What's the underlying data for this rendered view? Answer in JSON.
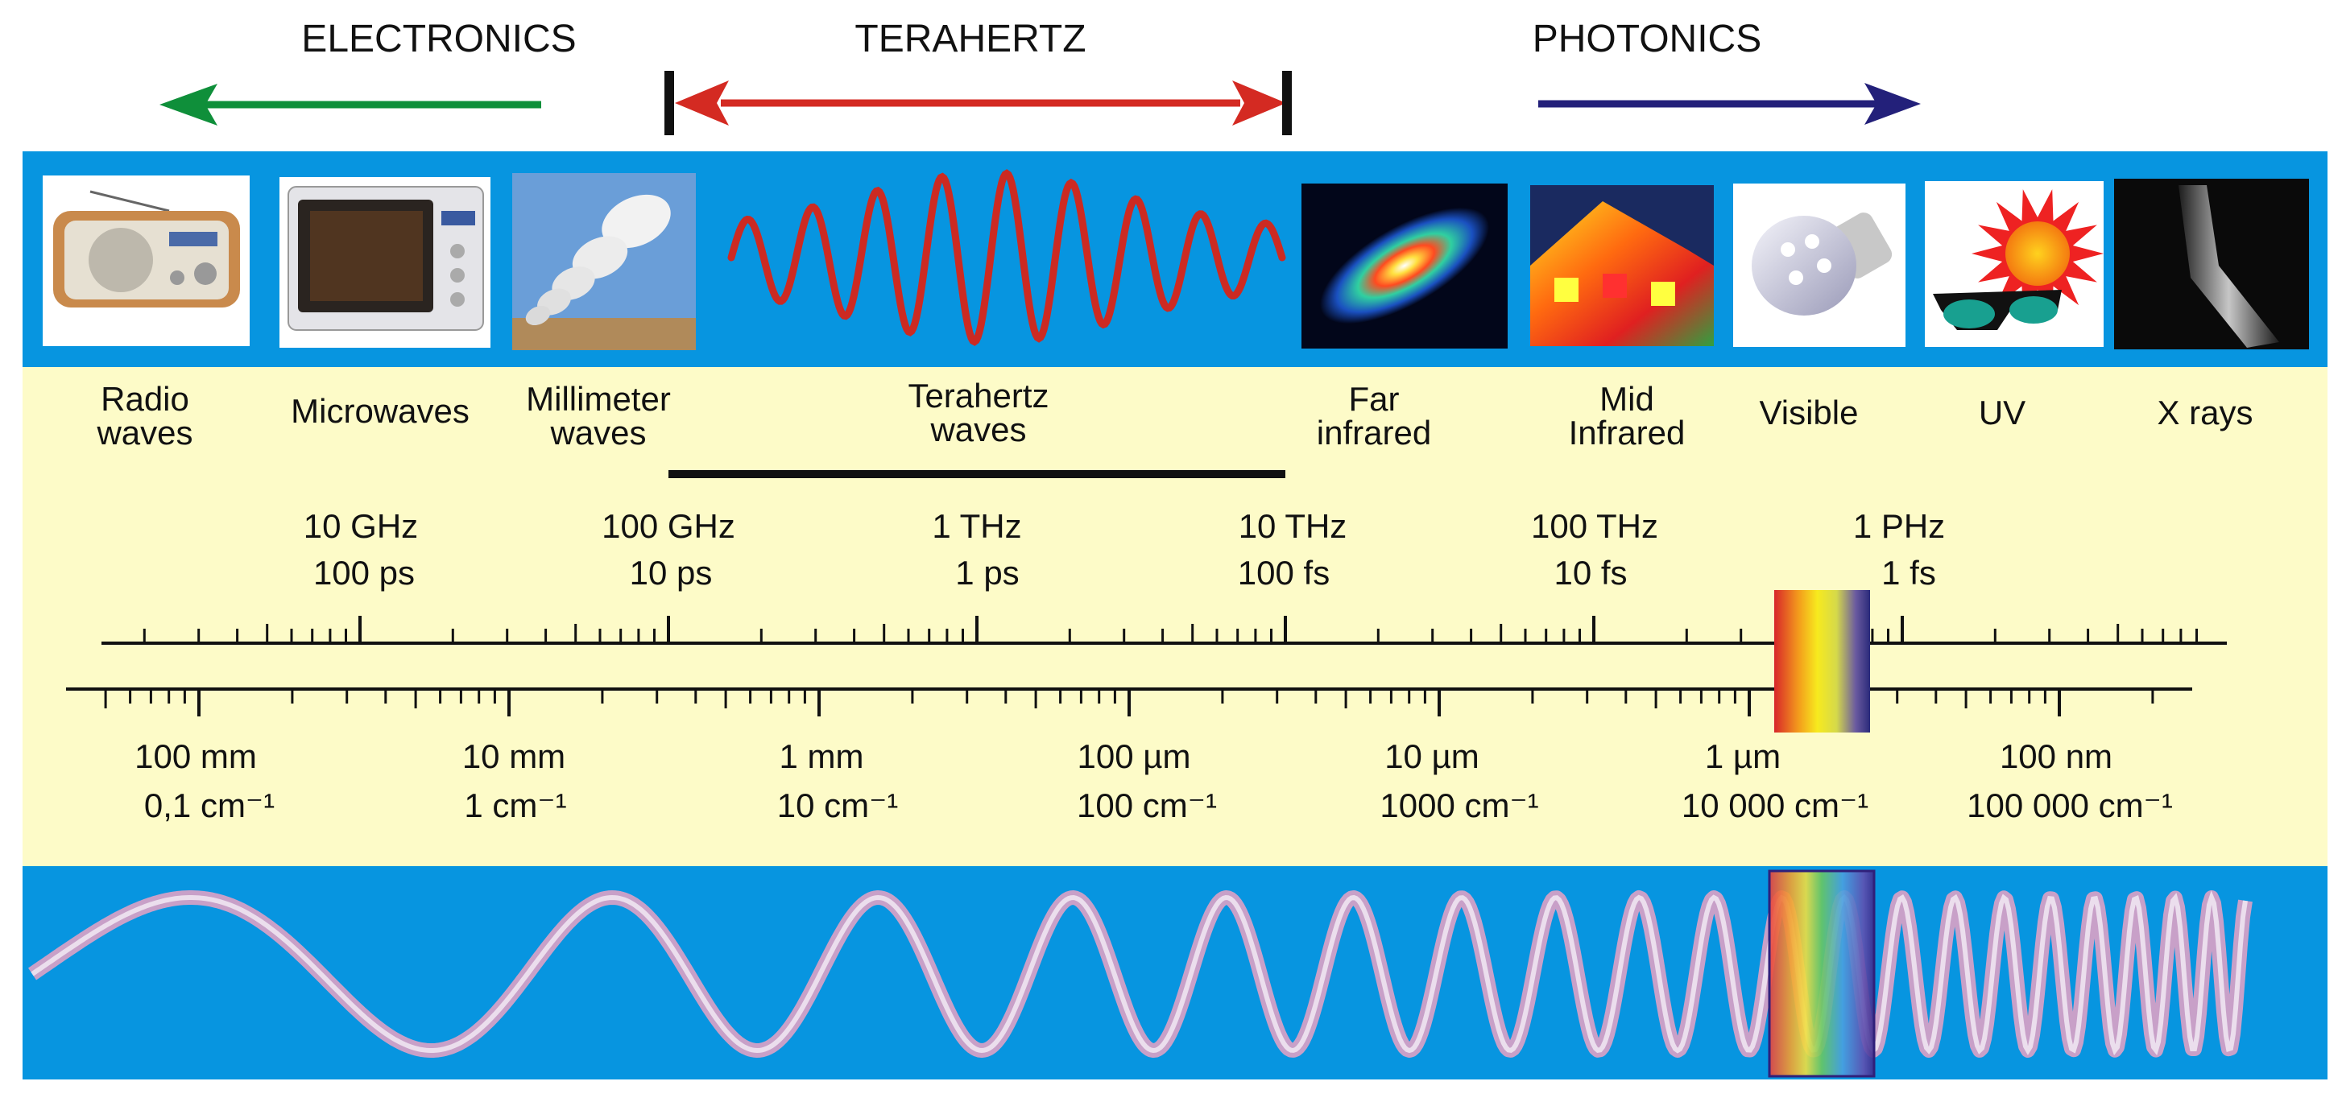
{
  "header": {
    "electronics": "ELECTRONICS",
    "terahertz": "TERAHERTZ",
    "photonics": "PHOTONICS"
  },
  "colors": {
    "panel_blue": "#0795e0",
    "band_cream": "#fdfbc8",
    "electronics_arrow": "#0f8f3a",
    "terahertz_arrow": "#d42a22",
    "photonics_arrow": "#23207a",
    "thz_wave": "#cc2a22"
  },
  "icons": [
    {
      "name": "radio-icon"
    },
    {
      "name": "microwave-oven-icon"
    },
    {
      "name": "radio-telescope-array-icon"
    },
    {
      "name": "terahertz-wave-icon"
    },
    {
      "name": "infrared-galaxy-icon"
    },
    {
      "name": "thermal-house-icon"
    },
    {
      "name": "led-bulb-icon"
    },
    {
      "name": "sun-sunglasses-icon"
    },
    {
      "name": "xray-bone-icon"
    }
  ],
  "bands": [
    {
      "line1": "Radio",
      "line2": "waves"
    },
    {
      "line1": "Microwaves",
      "line2": ""
    },
    {
      "line1": "Millimeter",
      "line2": "waves"
    },
    {
      "line1": "Terahertz",
      "line2": "waves"
    },
    {
      "line1": "Far",
      "line2": "infrared"
    },
    {
      "line1": "Mid",
      "line2": "Infrared"
    },
    {
      "line1": "Visible",
      "line2": ""
    },
    {
      "line1": "UV",
      "line2": ""
    },
    {
      "line1": "X rays",
      "line2": ""
    }
  ],
  "frequency_scale": [
    {
      "freq": "10 GHz",
      "period": "100 ps"
    },
    {
      "freq": "100 GHz",
      "period": "10 ps"
    },
    {
      "freq": "1 THz",
      "period": "1 ps"
    },
    {
      "freq": "10 THz",
      "period": "100 fs"
    },
    {
      "freq": "100 THz",
      "period": "10 fs"
    },
    {
      "freq": "1 PHz",
      "period": "1 fs"
    }
  ],
  "wavelength_scale": [
    {
      "wavelength": "100 mm",
      "wavenumber": "0,1 cm⁻¹"
    },
    {
      "wavelength": "10 mm",
      "wavenumber": "1 cm⁻¹"
    },
    {
      "wavelength": "1 mm",
      "wavenumber": "10 cm⁻¹"
    },
    {
      "wavelength": "100 µm",
      "wavenumber": "100 cm⁻¹"
    },
    {
      "wavelength": "10 µm",
      "wavenumber": "1000 cm⁻¹"
    },
    {
      "wavelength": "1 µm",
      "wavenumber": "10 000 cm⁻¹"
    },
    {
      "wavelength": "100 nm",
      "wavenumber": "100 000 cm⁻¹"
    }
  ]
}
